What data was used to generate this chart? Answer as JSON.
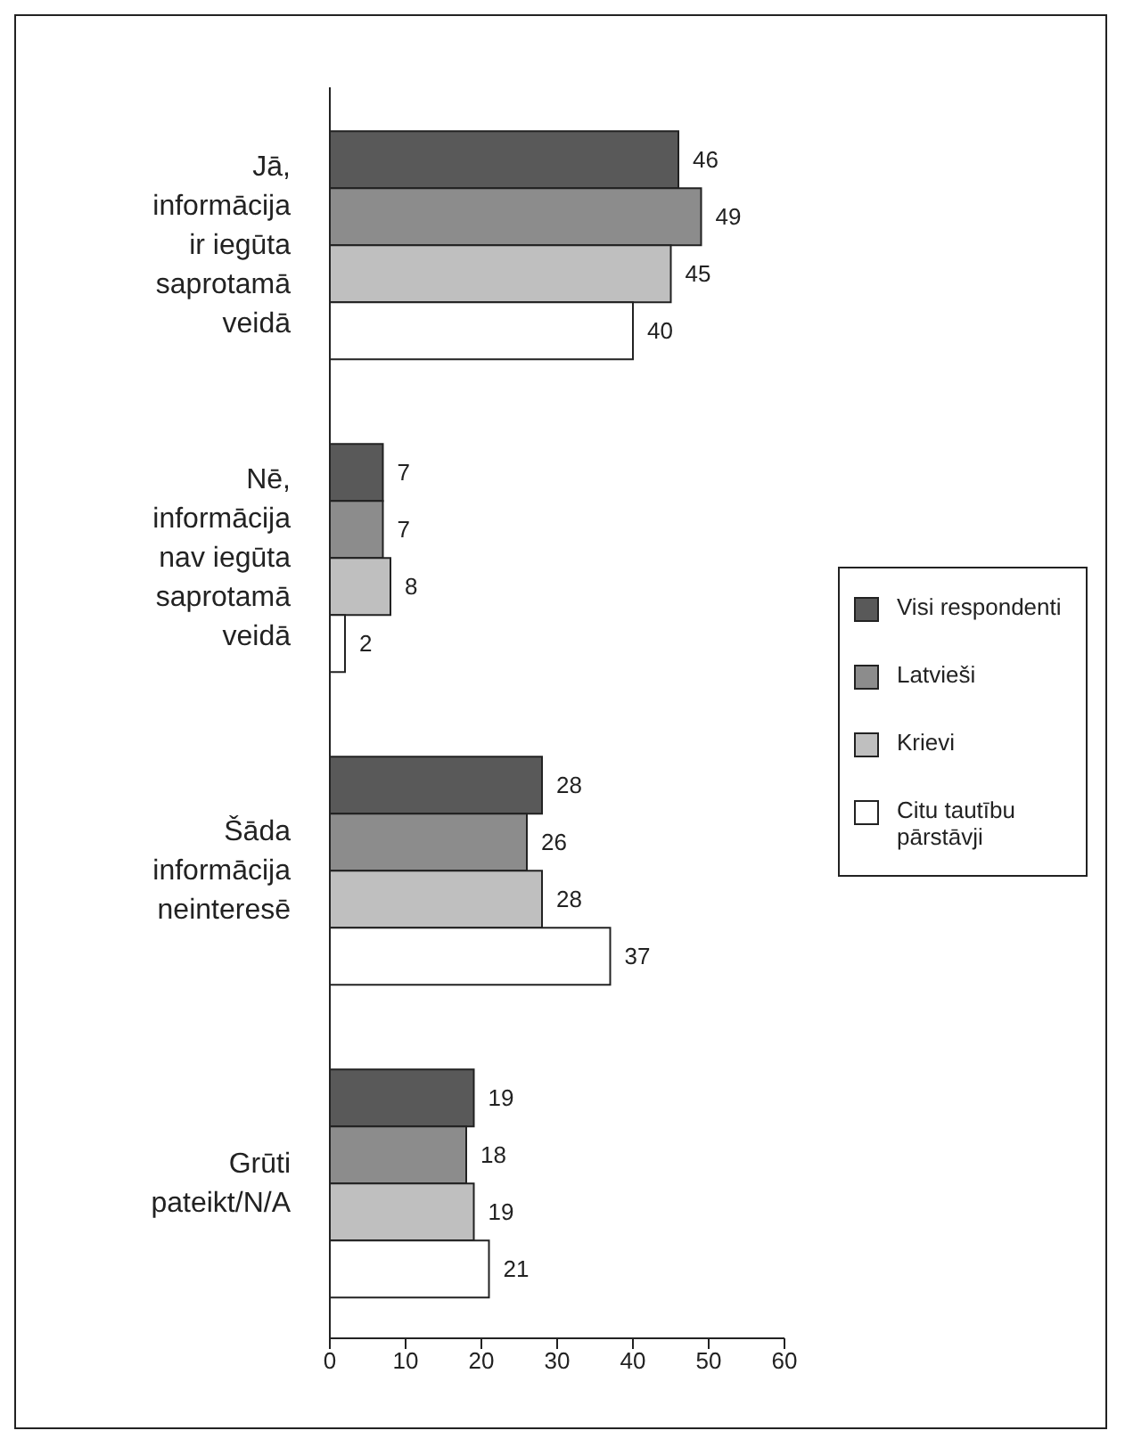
{
  "chart_data": {
    "type": "bar",
    "orientation": "horizontal",
    "categories": [
      "Jā, informācija ir iegūta saprotamā veidā",
      "Nē, informācija nav iegūta saprotamā veidā",
      "Šāda informācija neinteresē",
      "Grūti pateikt/N/A"
    ],
    "series": [
      {
        "name": "Visi respondenti",
        "color": "#595959",
        "values": [
          46,
          7,
          28,
          19
        ]
      },
      {
        "name": "Latvieši",
        "color": "#8c8c8c",
        "values": [
          49,
          7,
          26,
          18
        ]
      },
      {
        "name": "Krievi",
        "color": "#bfbfbf",
        "values": [
          45,
          8,
          28,
          19
        ]
      },
      {
        "name": "Citu tautību pārstāvji",
        "color": "#ffffff",
        "values": [
          40,
          2,
          37,
          21
        ]
      }
    ],
    "xlim": [
      0,
      60
    ],
    "xticks": [
      0,
      10,
      20,
      30,
      40,
      50,
      60
    ],
    "data_labels": true,
    "legend": "right",
    "grid": false
  }
}
